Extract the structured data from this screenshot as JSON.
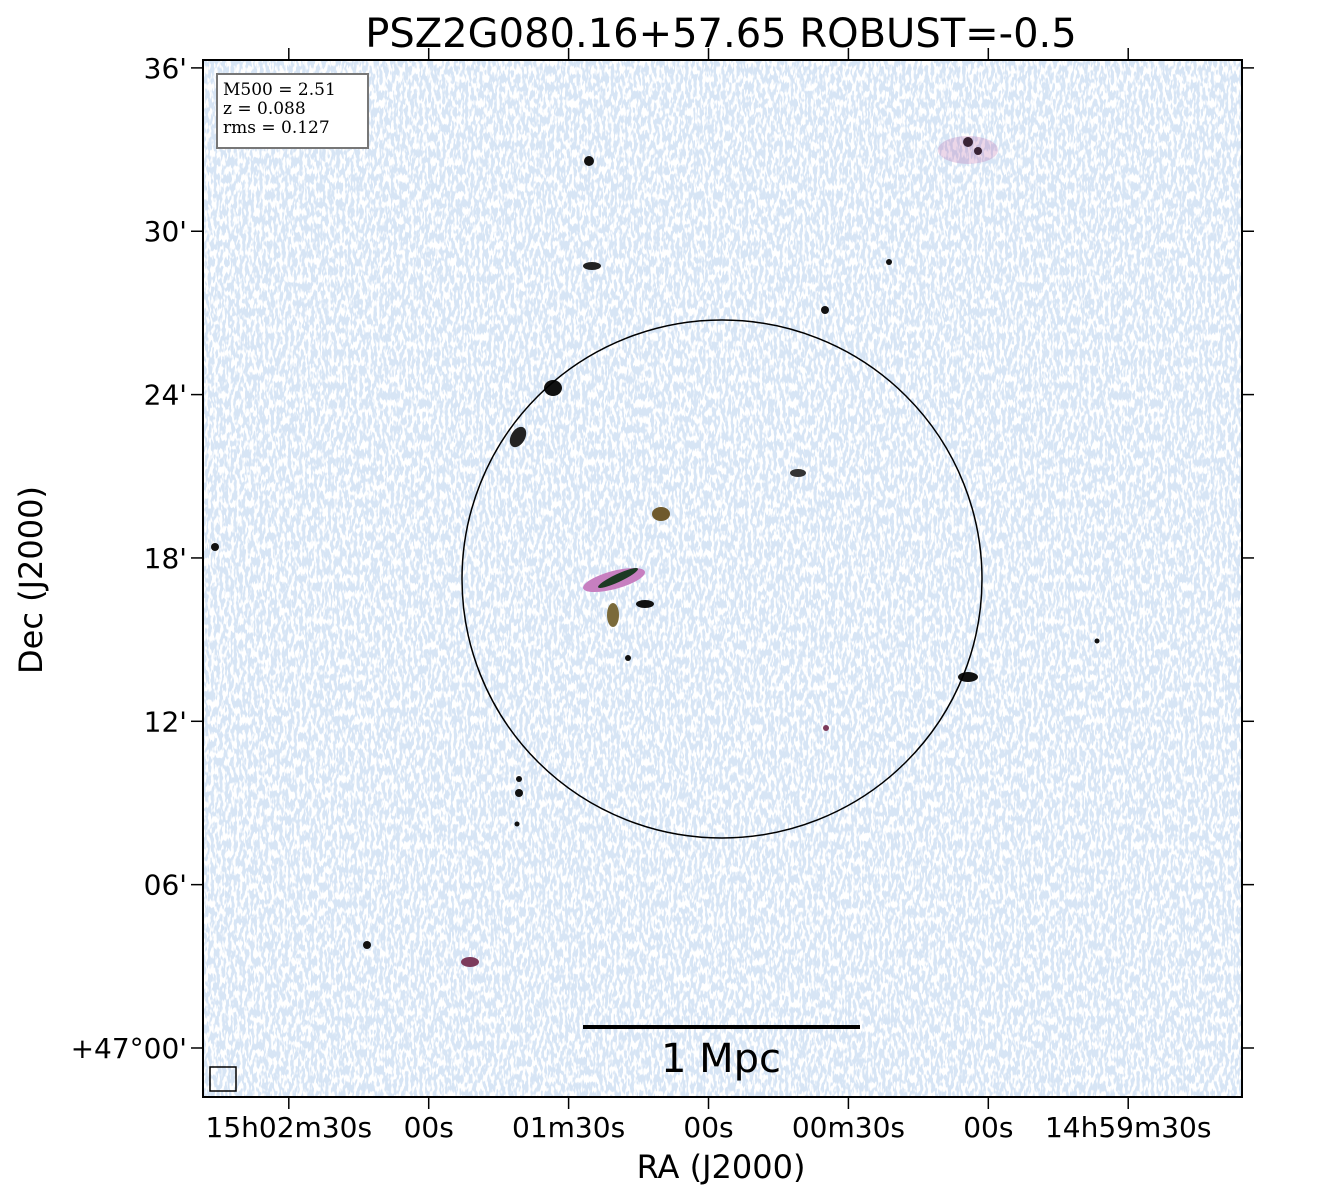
{
  "chart_data": {
    "type": "image",
    "title": "PSZ2G080.16+57.65 ROBUST=-0.5",
    "xlabel": "RA (J2000)",
    "ylabel": "Dec (J2000)",
    "xlim": [
      54168.4,
      53945.6
    ],
    "ylim": [
      -1.8,
      36.29
    ],
    "xticks": [
      {
        "value": 54150,
        "label": "15h02m30s"
      },
      {
        "value": 54120,
        "label": "00s"
      },
      {
        "value": 54090,
        "label": "01m30s"
      },
      {
        "value": 54060,
        "label": "00s"
      },
      {
        "value": 54030,
        "label": "00m30s"
      },
      {
        "value": 54000,
        "label": "00s"
      },
      {
        "value": 53970,
        "label": "14h59m30s"
      }
    ],
    "yticks": [
      {
        "value": 36,
        "label": "36'"
      },
      {
        "value": 30,
        "label": "30'"
      },
      {
        "value": 24,
        "label": "24'"
      },
      {
        "value": 18,
        "label": "18'"
      },
      {
        "value": 12,
        "label": "12'"
      },
      {
        "value": 6,
        "label": "06'"
      },
      {
        "value": 0,
        "label": "+47°00'"
      }
    ],
    "info": [
      "M500 = 2.51",
      "z = 0.088",
      "rms = 0.127"
    ],
    "scalebar_label": "1 Mpc"
  }
}
